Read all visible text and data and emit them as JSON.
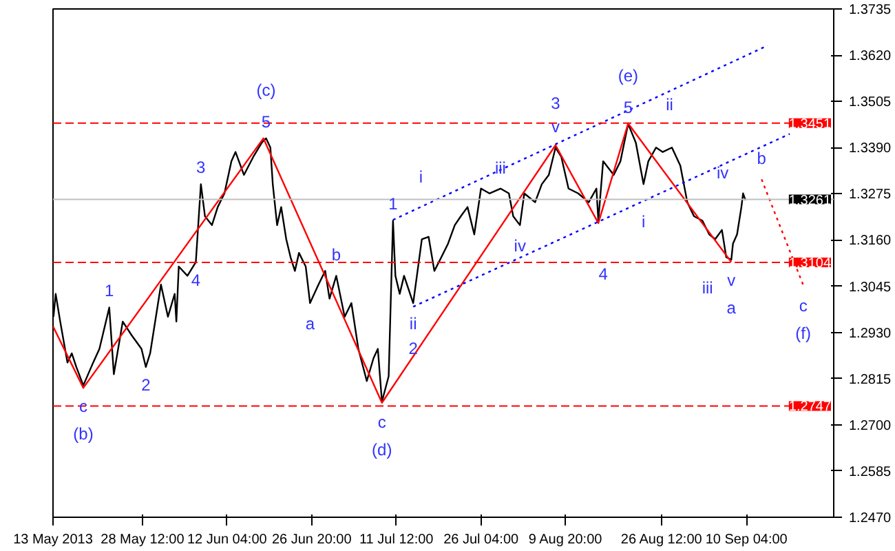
{
  "chart_data": {
    "type": "line",
    "xlim": [
      "2013-05-13T00:00",
      "2013-09-25T07:00"
    ],
    "ylim": [
      1.247,
      1.3735
    ],
    "xticks": [
      {
        "value": "2013-05-13T00:00",
        "label": "13 May 2013"
      },
      {
        "value": "2013-05-28T12:00",
        "label": "28 May 12:00"
      },
      {
        "value": "2013-06-12T04:00",
        "label": "12 Jun 04:00"
      },
      {
        "value": "2013-06-26T20:00",
        "label": "26 Jun 20:00"
      },
      {
        "value": "2013-07-11T12:00",
        "label": "11 Jul 12:00"
      },
      {
        "value": "2013-07-26T04:00",
        "label": "26 Jul 04:00"
      },
      {
        "value": "2013-08-09T20:00",
        "label": "9 Aug 20:00"
      },
      {
        "value": "2013-08-26T12:00",
        "label": "26 Aug 12:00"
      },
      {
        "value": "2013-09-10T04:00",
        "label": "10 Sep 04:00"
      }
    ],
    "yticks": [
      {
        "value": 1.247,
        "label": "1.2470"
      },
      {
        "value": 1.2585,
        "label": "1.2585"
      },
      {
        "value": 1.27,
        "label": "1.2700"
      },
      {
        "value": 1.2815,
        "label": "1.2815"
      },
      {
        "value": 1.293,
        "label": "1.2930"
      },
      {
        "value": 1.3045,
        "label": "1.3045"
      },
      {
        "value": 1.316,
        "label": "1.3160"
      },
      {
        "value": 1.3275,
        "label": "1.3275"
      },
      {
        "value": 1.339,
        "label": "1.3390"
      },
      {
        "value": 1.3505,
        "label": "1.3505"
      },
      {
        "value": 1.362,
        "label": "1.3620"
      },
      {
        "value": 1.3735,
        "label": "1.3735"
      }
    ],
    "grid": false,
    "series": [
      {
        "color": "#000000",
        "x": [
          "2013-05-13T02:00",
          "2013-05-13T11:00",
          "2013-05-14T06:00",
          "2013-05-15T12:00",
          "2013-05-16T06:00",
          "2013-05-17T01:00",
          "2013-05-18T06:00",
          "2013-05-19T23:00",
          "2013-05-21T01:00",
          "2013-05-22T18:00",
          "2013-05-23T13:00",
          "2013-05-25T02:00",
          "2013-05-26T15:00",
          "2013-05-28T08:00",
          "2013-05-29T02:00",
          "2013-05-29T20:00",
          "2013-05-31T17:00",
          "2013-06-01T22:00",
          "2013-06-03T02:00",
          "2013-06-03T09:00",
          "2013-06-03T19:00",
          "2013-06-05T07:00",
          "2013-06-06T18:00",
          "2013-06-07T15:00",
          "2013-06-08T08:00",
          "2013-06-09T13:00",
          "2013-06-10T13:00",
          "2013-06-11T17:00",
          "2013-06-12T22:00",
          "2013-06-13T15:00",
          "2013-06-15T02:00",
          "2013-06-16T17:00",
          "2013-06-18T04:00",
          "2013-06-18T22:00",
          "2013-06-19T16:00",
          "2013-06-20T02:00",
          "2013-06-20T20:00",
          "2013-06-21T13:00",
          "2013-06-22T10:00",
          "2013-06-23T04:00",
          "2013-06-23T22:00",
          "2013-06-24T15:00",
          "2013-06-25T19:00",
          "2013-06-26T13:00",
          "2013-06-28T00:00",
          "2013-06-29T04:00",
          "2013-06-29T22:00",
          "2013-07-01T02:00",
          "2013-07-02T13:00",
          "2013-07-03T17:00",
          "2013-07-04T22:00",
          "2013-07-06T09:00",
          "2013-07-07T13:00",
          "2013-07-08T07:00",
          "2013-07-09T00:00",
          "2013-07-10T04:00",
          "2013-07-10T22:00",
          "2013-07-11T08:00",
          "2013-07-12T02:00",
          "2013-07-12T20:00",
          "2013-07-14T10:00",
          "2013-07-15T22:00",
          "2013-07-17T02:00",
          "2013-07-18T02:00",
          "2013-07-19T07:00",
          "2013-07-20T11:00",
          "2013-07-21T15:00",
          "2013-07-22T16:00",
          "2013-07-23T20:00",
          "2013-07-25T00:00",
          "2013-07-26T04:00",
          "2013-07-27T15:00",
          "2013-07-29T13:00",
          "2013-07-31T00:00",
          "2013-07-31T18:00",
          "2013-08-01T22:00",
          "2013-08-02T16:00",
          "2013-08-04T13:00",
          "2013-08-05T17:00",
          "2013-08-06T22:00",
          "2013-08-08T02:00",
          "2013-08-09T02:00",
          "2013-08-10T08:00",
          "2013-08-12T00:00",
          "2013-08-13T20:00",
          "2013-08-15T04:00",
          "2013-08-15T12:00",
          "2013-08-16T08:00",
          "2013-08-18T04:00",
          "2013-08-19T08:00",
          "2013-08-20T16:00",
          "2013-08-22T00:00",
          "2013-08-23T08:00",
          "2013-08-24T04:00",
          "2013-08-25T12:00",
          "2013-08-26T16:00",
          "2013-08-28T06:00",
          "2013-08-29T17:00",
          "2013-08-30T22:00",
          "2013-09-01T02:00",
          "2013-09-02T13:00",
          "2013-09-03T17:00",
          "2013-09-04T18:00",
          "2013-09-05T22:00",
          "2013-09-06T16:00",
          "2013-09-07T13:00",
          "2013-09-07T20:00",
          "2013-09-08T13:00",
          "2013-09-09T07:00",
          "2013-09-09T14:00",
          "2013-09-10T00:00"
        ],
        "values": [
          1.2969,
          1.3026,
          1.2957,
          1.2855,
          1.2878,
          1.2844,
          1.2798,
          1.2855,
          1.2889,
          1.2992,
          1.2826,
          1.2957,
          1.2923,
          1.2889,
          1.2844,
          1.2878,
          1.3049,
          1.2969,
          1.3026,
          1.2957,
          1.3094,
          1.3071,
          1.3105,
          1.3299,
          1.3219,
          1.3197,
          1.3242,
          1.3276,
          1.3356,
          1.3379,
          1.3322,
          1.3367,
          1.3402,
          1.3413,
          1.339,
          1.3299,
          1.3197,
          1.3242,
          1.3162,
          1.3117,
          1.3083,
          1.3128,
          1.3094,
          1.3003,
          1.3049,
          1.3083,
          1.3014,
          1.3071,
          1.2969,
          1.3003,
          1.2889,
          1.2809,
          1.2866,
          1.2889,
          1.2758,
          1.2821,
          1.3208,
          1.3071,
          1.3026,
          1.3071,
          1.3003,
          1.3162,
          1.3168,
          1.3083,
          1.3117,
          1.3151,
          1.3197,
          1.3219,
          1.3242,
          1.3174,
          1.3288,
          1.3276,
          1.3288,
          1.3276,
          1.3219,
          1.3197,
          1.3276,
          1.3254,
          1.3299,
          1.3322,
          1.339,
          1.3367,
          1.3288,
          1.3276,
          1.3254,
          1.3288,
          1.3208,
          1.3356,
          1.3322,
          1.3356,
          1.3449,
          1.3402,
          1.3299,
          1.3356,
          1.339,
          1.3379,
          1.339,
          1.3345,
          1.3254,
          1.3219,
          1.3208,
          1.3174,
          1.3162,
          1.3185,
          1.3117,
          1.3111,
          1.3151,
          1.3174,
          1.3242,
          1.3276,
          1.3259
        ]
      },
      {
        "color": "#ff0000",
        "line_style": "solid",
        "x": [
          "2013-05-13T00:00",
          "2013-05-18T06:00",
          "2013-06-18T11:00",
          "2013-07-09T00:00",
          "2013-08-08T02:00",
          "2013-08-15T12:00",
          "2013-08-20T16:00",
          "2013-09-07T13:00"
        ],
        "values": [
          1.2945,
          1.2792,
          1.3413,
          1.2755,
          1.3396,
          1.3202,
          1.345,
          1.3105
        ]
      },
      {
        "color": "#ff0000",
        "line_style": "dotted",
        "x": [
          "2013-09-12T19:00",
          "2013-09-20T00:00"
        ],
        "values": [
          1.3311,
          1.3048
        ]
      },
      {
        "color": "#0000ff",
        "line_style": "dotted",
        "x": [
          "2013-07-10T22:00",
          "2013-09-13T20:00"
        ],
        "values": [
          1.321,
          1.3644
        ]
      },
      {
        "color": "#0000ff",
        "line_style": "dotted",
        "x": [
          "2013-07-14T10:00",
          "2013-09-17T16:00"
        ],
        "values": [
          1.2994,
          1.3424
        ]
      }
    ],
    "ref_lines": [
      {
        "axis": "y",
        "value": 1.3451,
        "label": "1.3451",
        "color": "#ff0000",
        "line_style": "dashed"
      },
      {
        "axis": "y",
        "value": 1.3261,
        "label": "1.3261",
        "color": "#c0c0c0",
        "line_style": "solid"
      },
      {
        "axis": "y",
        "value": 1.3104,
        "label": "1.3104",
        "color": "#ff0000",
        "line_style": "dashed"
      },
      {
        "axis": "y",
        "value": 1.2747,
        "label": "1.2747",
        "color": "#ff0000",
        "line_style": "dashed"
      }
    ],
    "annotations": [
      {
        "text": "5",
        "x": "2013-06-18T22:00",
        "y": 1.3413
      },
      {
        "text": "(c)",
        "x": "2013-06-18T22:00",
        "y": 1.3413
      },
      {
        "text": "3",
        "x": "2013-06-07T15:00",
        "y": 1.3299
      },
      {
        "text": "4",
        "x": "2013-06-06T18:00",
        "y": 1.3105
      },
      {
        "text": "1",
        "x": "2013-05-22T18:00",
        "y": 1.2992
      },
      {
        "text": "2",
        "x": "2013-05-29T02:00",
        "y": 1.2844
      },
      {
        "text": "c",
        "x": "2013-05-18T06:00",
        "y": 1.2798
      },
      {
        "text": "(b)",
        "x": "2013-05-18T06:00",
        "y": 1.2798
      },
      {
        "text": "a",
        "x": "2013-06-26T13:00",
        "y": 1.3003
      },
      {
        "text": "b",
        "x": "2013-07-01T02:00",
        "y": 1.3071
      },
      {
        "text": "c",
        "x": "2013-07-09T00:00",
        "y": 1.2758
      },
      {
        "text": "(d)",
        "x": "2013-07-09T00:00",
        "y": 1.2758
      },
      {
        "text": "1",
        "x": "2013-07-10T22:00",
        "y": 1.3208
      },
      {
        "text": "i",
        "x": "2013-07-15T18:00",
        "y": 1.3266
      },
      {
        "text": "ii",
        "x": "2013-07-14T10:00",
        "y": 1.3003
      },
      {
        "text": "2",
        "x": "2013-07-14T10:00",
        "y": 1.3003
      },
      {
        "text": "v",
        "x": "2013-08-08T02:00",
        "y": 1.339
      },
      {
        "text": "3",
        "x": "2013-08-08T02:00",
        "y": 1.339
      },
      {
        "text": "5",
        "x": "2013-08-20T16:00",
        "y": 1.3449
      },
      {
        "text": "(e)",
        "x": "2013-08-20T16:00",
        "y": 1.3449
      },
      {
        "text": "iii",
        "x": "2013-07-29T13:00",
        "y": 1.3288
      },
      {
        "text": "ii",
        "x": "2013-08-27T20:00",
        "y": 1.3446
      },
      {
        "text": "iv",
        "x": "2013-08-01T22:00",
        "y": 1.3197
      },
      {
        "text": "4",
        "x": "2013-08-16T08:00",
        "y": 1.3119
      },
      {
        "text": "i",
        "x": "2013-08-23T08:00",
        "y": 1.3256
      },
      {
        "text": "iii",
        "x": "2013-09-03T10:00",
        "y": 1.3092
      },
      {
        "text": "iv",
        "x": "2013-09-06T01:00",
        "y": 1.3276
      },
      {
        "text": "b",
        "x": "2013-09-12T19:00",
        "y": 1.3311
      },
      {
        "text": "v",
        "x": "2013-09-07T13:00",
        "y": 1.3111
      },
      {
        "text": "a",
        "x": "2013-09-07T13:00",
        "y": 1.3111
      },
      {
        "text": "c",
        "x": "2013-09-20T00:00",
        "y": 1.3048
      },
      {
        "text": "(f)",
        "x": "2013-09-20T00:00",
        "y": 1.3048
      }
    ]
  }
}
